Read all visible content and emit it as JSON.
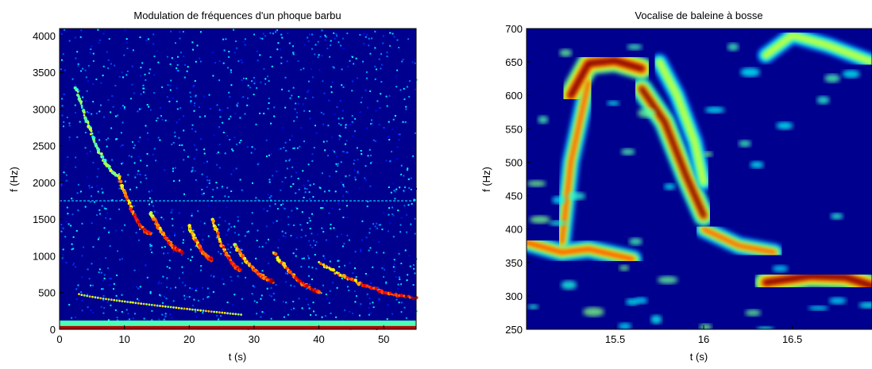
{
  "chart_data": [
    {
      "type": "heatmap",
      "title": "Modulation de fréquences d'un phoque barbu",
      "xlabel": "t (s)",
      "ylabel": "f (Hz)",
      "xlim": [
        0,
        55
      ],
      "ylim": [
        0,
        4096
      ],
      "x_ticks": [
        0,
        10,
        20,
        30,
        40,
        50
      ],
      "y_ticks": [
        0,
        500,
        1000,
        1500,
        2000,
        2500,
        3000,
        3500,
        4000
      ],
      "colormap": "jet",
      "calls": [
        {
          "t_start": 2.5,
          "f_start": 3300,
          "t_end": 9,
          "f_end": 2100
        },
        {
          "t_start": 9,
          "f_start": 2100,
          "t_end": 14,
          "f_end": 1300
        },
        {
          "t_start": 14,
          "f_start": 1600,
          "t_end": 19,
          "f_end": 1050
        },
        {
          "t_start": 20,
          "f_start": 1400,
          "t_end": 23.5,
          "f_end": 950
        },
        {
          "t_start": 23.5,
          "f_start": 1500,
          "t_end": 28,
          "f_end": 800
        },
        {
          "t_start": 27,
          "f_start": 1150,
          "t_end": 33,
          "f_end": 650
        },
        {
          "t_start": 33,
          "f_start": 1050,
          "t_end": 40,
          "f_end": 520
        },
        {
          "t_start": 40,
          "f_start": 900,
          "t_end": 55,
          "f_end": 430
        }
      ],
      "low_band": {
        "t_start": 3,
        "f_start": 480,
        "t_end": 28,
        "f_end": 200
      },
      "tone_line_hz": 1750
    },
    {
      "type": "heatmap",
      "title": "Vocalise de baleine à bosse",
      "xlabel": "t (s)",
      "ylabel": "f (Hz)",
      "xlim": [
        15.0,
        16.95
      ],
      "ylim": [
        250,
        700
      ],
      "x_ticks": [
        15.5,
        16,
        16.5
      ],
      "x_tick_labels": [
        "15.5",
        "16",
        "16.5"
      ],
      "y_ticks": [
        250,
        300,
        350,
        400,
        450,
        500,
        550,
        600,
        650,
        700
      ],
      "colormap": "jet",
      "ridges": [
        {
          "t": [
            15.0,
            15.2,
            15.35,
            15.6
          ],
          "f": [
            380,
            365,
            370,
            355
          ],
          "strength": 0.6
        },
        {
          "t": [
            15.2,
            15.25,
            15.3,
            15.35
          ],
          "f": [
            380,
            500,
            560,
            620
          ],
          "strength": 0.55
        },
        {
          "t": [
            15.25,
            15.35,
            15.5,
            15.65
          ],
          "f": [
            600,
            648,
            652,
            640
          ],
          "strength": 1.0
        },
        {
          "t": [
            15.65,
            15.78,
            15.9,
            16.0
          ],
          "f": [
            610,
            560,
            480,
            420
          ],
          "strength": 0.85
        },
        {
          "t": [
            16.0,
            16.2,
            16.4
          ],
          "f": [
            400,
            375,
            365
          ],
          "strength": 0.55
        },
        {
          "t": [
            15.75,
            15.85,
            15.95,
            16.0
          ],
          "f": [
            650,
            600,
            530,
            470
          ],
          "strength": 0.45
        },
        {
          "t": [
            16.35,
            16.6,
            16.8,
            16.95
          ],
          "f": [
            320,
            330,
            328,
            315
          ],
          "strength": 1.0
        },
        {
          "t": [
            16.35,
            16.5,
            16.7,
            16.95
          ],
          "f": [
            660,
            690,
            675,
            650
          ],
          "strength": 0.45
        }
      ]
    }
  ]
}
